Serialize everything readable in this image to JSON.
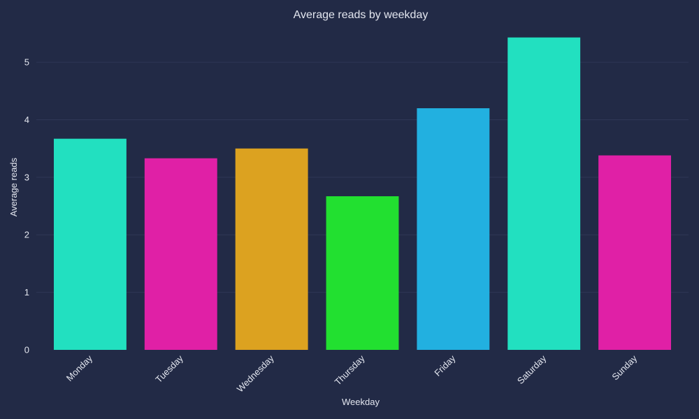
{
  "chart_data": {
    "type": "bar",
    "title": "Average reads by weekday",
    "xlabel": "Weekday",
    "ylabel": "Average reads",
    "categories": [
      "Monday",
      "Tuesday",
      "Wednesday",
      "Thursday",
      "Friday",
      "Saturday",
      "Sunday"
    ],
    "values": [
      3.67,
      3.33,
      3.5,
      2.67,
      4.2,
      5.43,
      3.38
    ],
    "colors": [
      "#22e0c0",
      "#e020a6",
      "#dca220",
      "#22e030",
      "#22b0e0",
      "#22e0c0",
      "#e020a6"
    ],
    "ylim": [
      0,
      5.45
    ],
    "yticks": [
      0,
      1,
      2,
      3,
      4,
      5
    ],
    "grid": true,
    "background": "#222a46"
  }
}
